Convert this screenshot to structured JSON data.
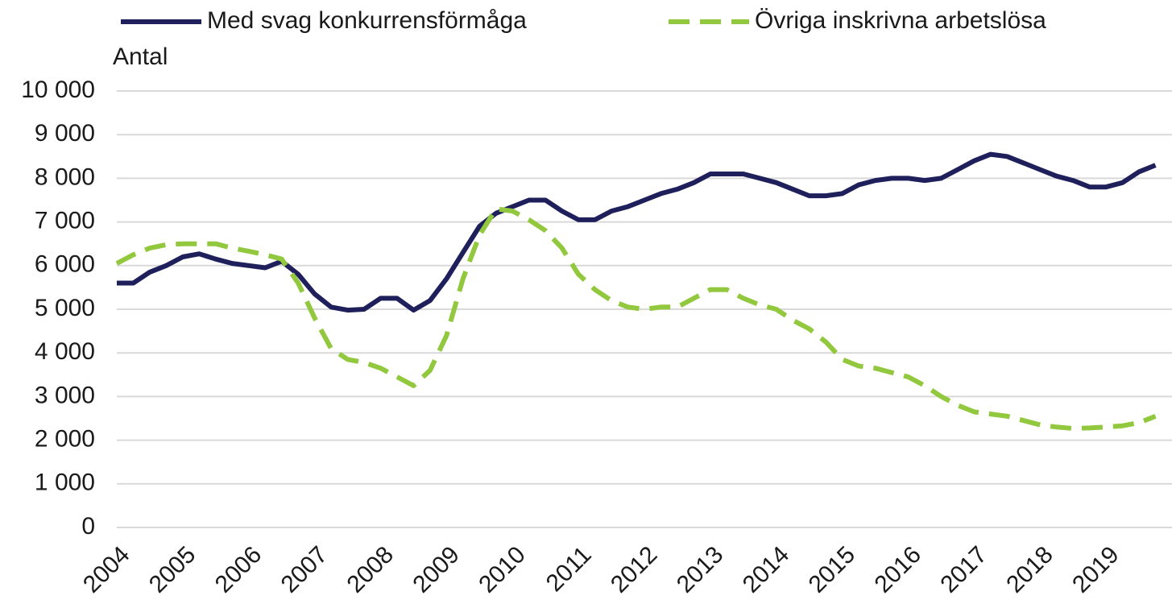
{
  "chart_data": {
    "type": "line",
    "y_label": "Antal",
    "x": [
      2004,
      2004.25,
      2004.5,
      2004.75,
      2005,
      2005.25,
      2005.5,
      2005.75,
      2006,
      2006.25,
      2006.5,
      2006.75,
      2007,
      2007.25,
      2007.5,
      2007.75,
      2008,
      2008.25,
      2008.5,
      2008.75,
      2009,
      2009.25,
      2009.5,
      2009.75,
      2010,
      2010.25,
      2010.5,
      2010.75,
      2011,
      2011.25,
      2011.5,
      2011.75,
      2012,
      2012.25,
      2012.5,
      2012.75,
      2013,
      2013.25,
      2013.5,
      2013.75,
      2014,
      2014.25,
      2014.5,
      2014.75,
      2015,
      2015.25,
      2015.5,
      2015.75,
      2016,
      2016.25,
      2016.5,
      2016.75,
      2017,
      2017.25,
      2017.5,
      2017.75,
      2018,
      2018.25,
      2018.5,
      2018.75,
      2019,
      2019.25,
      2019.5,
      2019.75
    ],
    "series": [
      {
        "name": "Med svag konkurrensförmåga",
        "color": "#1f1f5c",
        "dash": false,
        "values": [
          5600,
          5600,
          5850,
          6000,
          6200,
          6270,
          6150,
          6050,
          6000,
          5950,
          6100,
          5800,
          5350,
          5050,
          4980,
          5000,
          5250,
          5250,
          4980,
          5200,
          5700,
          6300,
          6900,
          7200,
          7350,
          7500,
          7500,
          7250,
          7050,
          7050,
          7250,
          7350,
          7500,
          7650,
          7750,
          7900,
          8100,
          8100,
          8100,
          8000,
          7900,
          7750,
          7600,
          7600,
          7650,
          7850,
          7950,
          8000,
          8000,
          7950,
          8000,
          8200,
          8400,
          8550,
          8500,
          8350,
          8200,
          8050,
          7950,
          7800,
          7800,
          7900,
          8150,
          8300
        ]
      },
      {
        "name": "Övriga inskrivna arbetslösa",
        "color": "#92c83e",
        "dash": true,
        "values": [
          6050,
          6250,
          6400,
          6480,
          6500,
          6500,
          6500,
          6400,
          6330,
          6250,
          6150,
          5600,
          4800,
          4100,
          3850,
          3780,
          3650,
          3450,
          3250,
          3600,
          4400,
          5700,
          6700,
          7300,
          7250,
          7050,
          6800,
          6400,
          5800,
          5450,
          5200,
          5050,
          5000,
          5050,
          5050,
          5250,
          5450,
          5450,
          5250,
          5100,
          5000,
          4750,
          4550,
          4250,
          3850,
          3700,
          3650,
          3550,
          3450,
          3250,
          3000,
          2800,
          2650,
          2600,
          2550,
          2450,
          2350,
          2300,
          2270,
          2280,
          2300,
          2330,
          2400,
          2550
        ]
      }
    ],
    "xlim": [
      2004,
      2020
    ],
    "xticks": [
      2004,
      2005,
      2006,
      2007,
      2008,
      2009,
      2010,
      2011,
      2012,
      2013,
      2014,
      2015,
      2016,
      2017,
      2018,
      2019
    ],
    "ylim": [
      0,
      10000
    ],
    "yticks": [
      0,
      {
        "value": 1000,
        "label": "1 000"
      },
      {
        "value": 2000,
        "label": "2 000"
      },
      {
        "value": 3000,
        "label": "3 000"
      },
      {
        "value": 4000,
        "label": "4 000"
      },
      {
        "value": 5000,
        "label": "5 000"
      },
      {
        "value": 6000,
        "label": "6 000"
      },
      {
        "value": 7000,
        "label": "7 000"
      },
      {
        "value": 8000,
        "label": "8 000"
      },
      {
        "value": 9000,
        "label": "9 000"
      },
      {
        "value": 10000,
        "label": "10 000"
      }
    ],
    "grid": true,
    "legend": "top"
  }
}
